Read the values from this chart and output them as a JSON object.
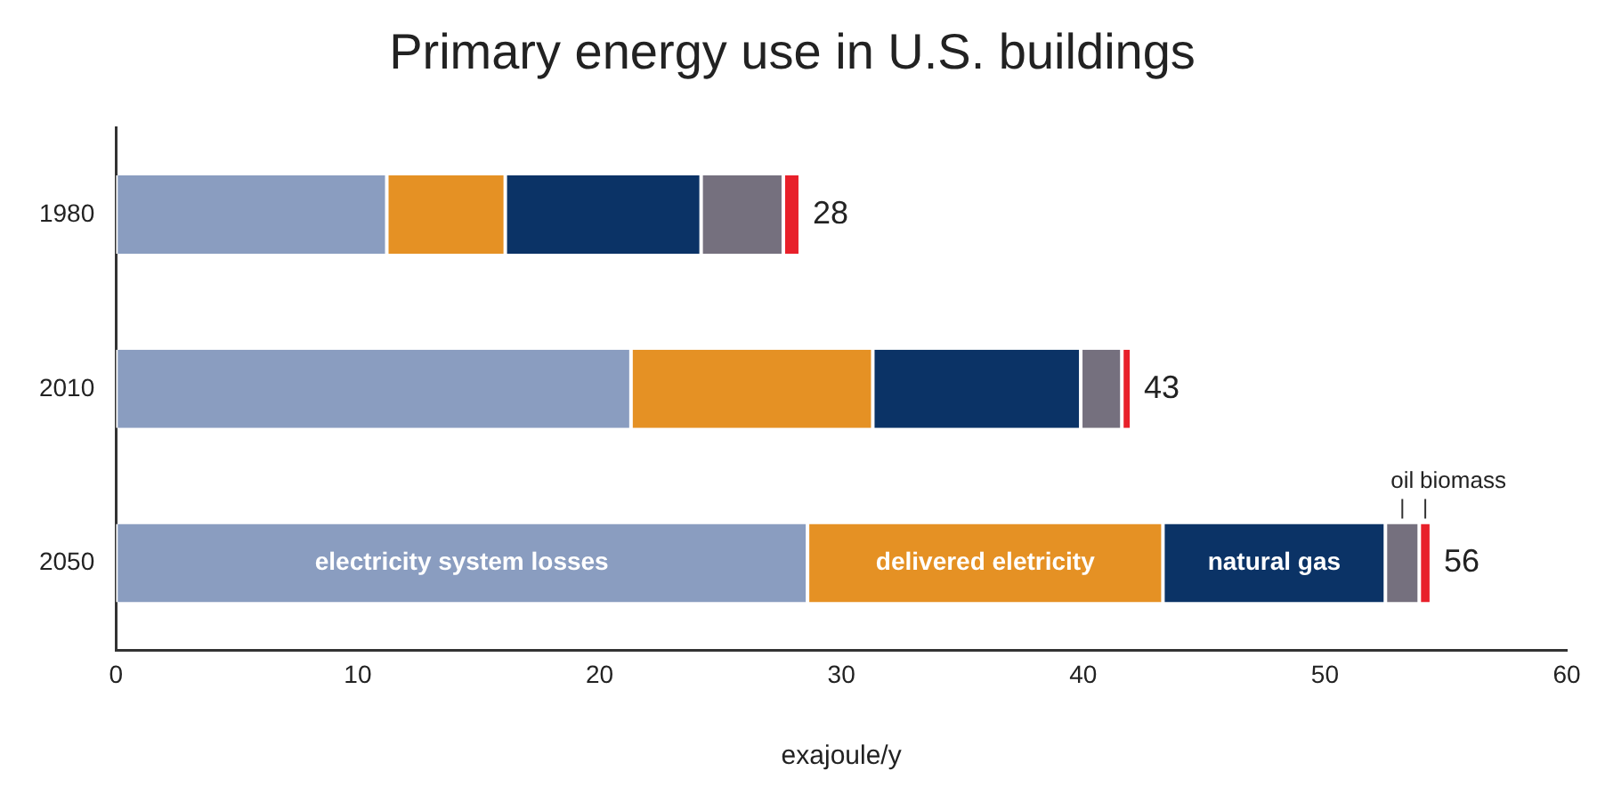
{
  "chart_data": {
    "type": "bar",
    "orientation": "horizontal",
    "stacked": true,
    "title": "Primary energy use in U.S. buildings",
    "xlabel": "exajoule/y",
    "categories": [
      "1980",
      "2010",
      "2050"
    ],
    "series": [
      {
        "name": "electricity system losses",
        "color": "#8a9dc0",
        "values": [
          11.2,
          21.3,
          28.6
        ]
      },
      {
        "name": "delivered eletricity",
        "color": "#e59124",
        "values": [
          4.9,
          10.0,
          14.7
        ]
      },
      {
        "name": "natural gas",
        "color": "#0b3366",
        "values": [
          8.1,
          8.6,
          9.2
        ]
      },
      {
        "name": "oil",
        "color": "#75707e",
        "values": [
          3.4,
          1.7,
          1.4
        ]
      },
      {
        "name": "biomass",
        "color": "#e8202a",
        "values": [
          0.7,
          0.4,
          0.5
        ]
      }
    ],
    "totals": [
      "28",
      "43",
      "56"
    ],
    "xlim": [
      0,
      60
    ],
    "xticks": [
      0,
      10,
      20,
      30,
      40,
      50,
      60
    ],
    "grid": false,
    "legend": false
  }
}
